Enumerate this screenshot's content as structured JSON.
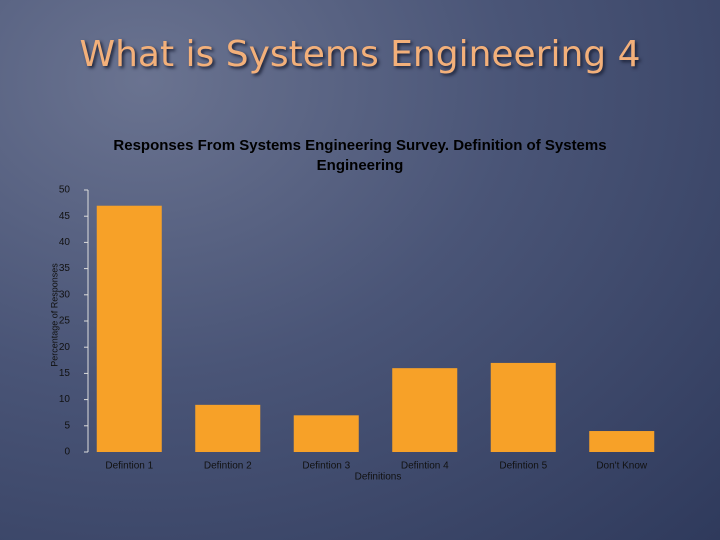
{
  "slide_title": "What is Systems Engineering 4",
  "chart_data": {
    "type": "bar",
    "title": "Responses From Systems Engineering Survey. Definition of Systems Engineering",
    "x_label": "Definitions",
    "y_label": "Percentage of Responses",
    "categories": [
      "Defintion 1",
      "Defintion 2",
      "Defintion 3",
      "Defintion 4",
      "Defintion 5",
      "Don't Know"
    ],
    "values": [
      47,
      9,
      7,
      16,
      17,
      4
    ],
    "color": "#f7a128",
    "ylim": [
      0,
      50
    ],
    "yticks": [
      0,
      5,
      10,
      15,
      20,
      25,
      30,
      35,
      40,
      45,
      50
    ]
  }
}
